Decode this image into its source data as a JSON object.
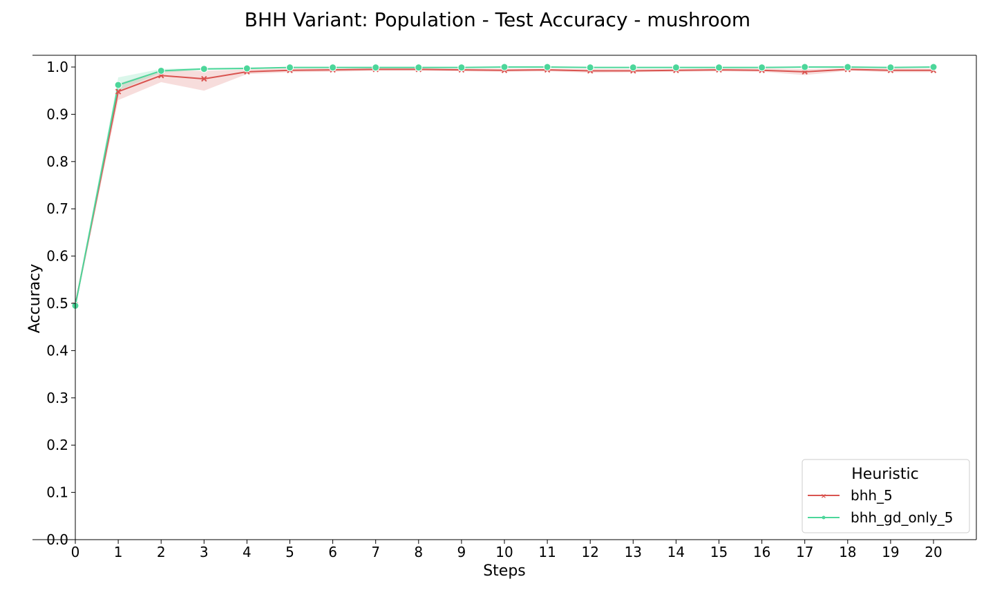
{
  "chart_data": {
    "type": "line",
    "title": "BHH Variant: Population - Test Accuracy - mushroom",
    "xlabel": "Steps",
    "ylabel": "Accuracy",
    "xlim": [
      0,
      20
    ],
    "ylim": [
      0.0,
      1.0
    ],
    "x": [
      0,
      1,
      2,
      3,
      4,
      5,
      6,
      7,
      8,
      9,
      10,
      11,
      12,
      13,
      14,
      15,
      16,
      17,
      18,
      19,
      20
    ],
    "xticks": [
      "0",
      "1",
      "2",
      "3",
      "4",
      "5",
      "6",
      "7",
      "8",
      "9",
      "10",
      "11",
      "12",
      "13",
      "14",
      "15",
      "16",
      "17",
      "18",
      "19",
      "20"
    ],
    "yticks": [
      "0.0",
      "0.1",
      "0.2",
      "0.3",
      "0.4",
      "0.5",
      "0.6",
      "0.7",
      "0.8",
      "0.9",
      "1.0"
    ],
    "grid": false,
    "legend_title": "Heuristic",
    "legend_position": "lower-right",
    "series": [
      {
        "name": "bhh_5",
        "color": "#d9534f",
        "marker": "x",
        "values": [
          0.497,
          0.948,
          0.982,
          0.975,
          0.99,
          0.993,
          0.994,
          0.995,
          0.995,
          0.994,
          0.993,
          0.994,
          0.992,
          0.992,
          0.993,
          0.994,
          0.993,
          0.99,
          0.995,
          0.993,
          0.993
        ],
        "ci_low": [
          0.49,
          0.93,
          0.968,
          0.95,
          0.985,
          0.989,
          0.99,
          0.992,
          0.992,
          0.991,
          0.99,
          0.991,
          0.988,
          0.989,
          0.99,
          0.991,
          0.99,
          0.983,
          0.992,
          0.989,
          0.989
        ],
        "ci_high": [
          0.505,
          0.965,
          0.993,
          0.992,
          0.995,
          0.997,
          0.997,
          0.998,
          0.998,
          0.997,
          0.997,
          0.997,
          0.996,
          0.996,
          0.996,
          0.997,
          0.997,
          0.996,
          0.998,
          0.997,
          0.997
        ]
      },
      {
        "name": "bhh_gd_only_5",
        "color": "#4cd69a",
        "marker": "o",
        "values": [
          0.495,
          0.962,
          0.992,
          0.996,
          0.997,
          0.999,
          0.999,
          0.999,
          0.999,
          0.999,
          1.0,
          1.0,
          0.999,
          0.999,
          0.999,
          0.999,
          0.999,
          1.0,
          1.0,
          0.999,
          1.0
        ],
        "ci_low": [
          0.488,
          0.95,
          0.988,
          0.994,
          0.995,
          0.998,
          0.998,
          0.998,
          0.998,
          0.998,
          0.999,
          0.999,
          0.998,
          0.998,
          0.998,
          0.998,
          0.998,
          0.999,
          0.999,
          0.998,
          0.999
        ],
        "ci_high": [
          0.502,
          0.978,
          0.996,
          0.998,
          0.999,
          1.0,
          1.0,
          1.0,
          1.0,
          1.0,
          1.0,
          1.0,
          1.0,
          1.0,
          1.0,
          1.0,
          1.0,
          1.0,
          1.0,
          1.0,
          1.0
        ]
      }
    ]
  }
}
